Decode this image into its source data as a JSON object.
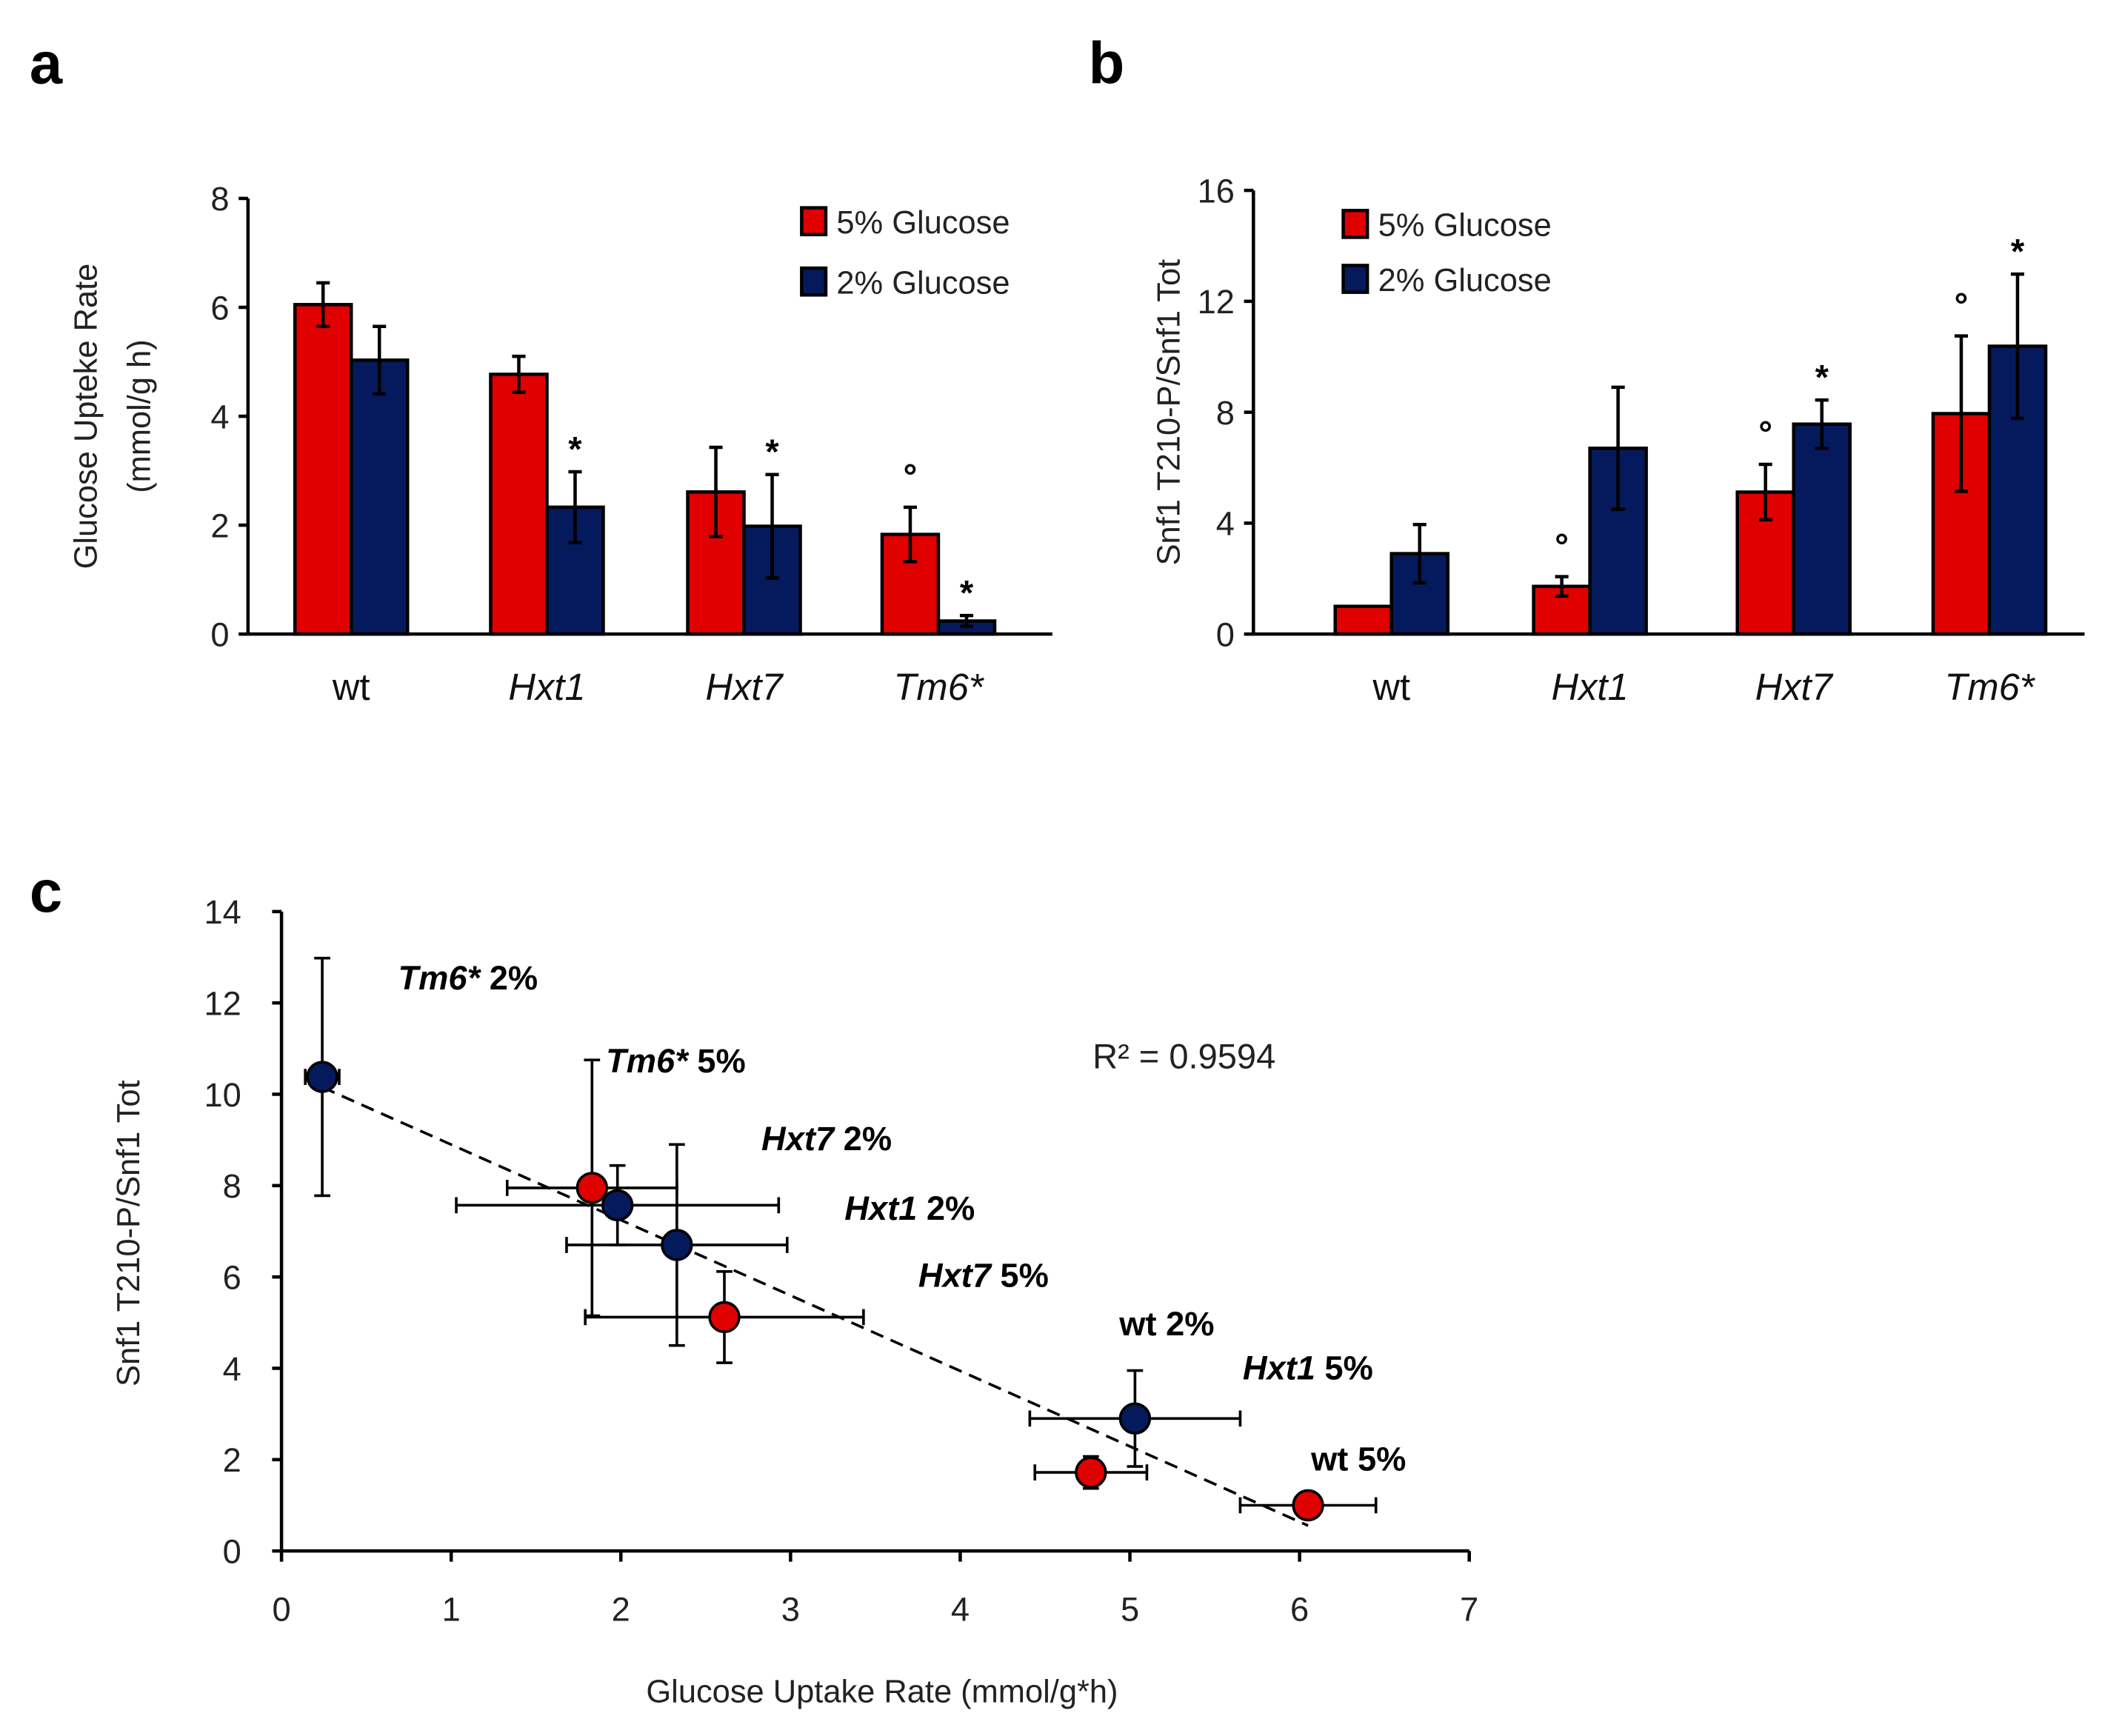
{
  "colors": {
    "red": "#e00000",
    "blue": "#041a5c",
    "axis": "#000000"
  },
  "chart_data": [
    {
      "id": "a",
      "panel_label": "a",
      "type": "bar",
      "ylabel_line1": "Glucose Upteke Rate",
      "ylabel_line2": "(mmol/g h)",
      "ylim": [
        0,
        8
      ],
      "yticks": [
        "0",
        "2",
        "4",
        "6",
        "8"
      ],
      "categories": [
        "wt",
        "Hxt1",
        "Hxt7",
        "Tm6*"
      ],
      "categories_italic": [
        false,
        true,
        true,
        true
      ],
      "legend": [
        "5% Glucose",
        "2% Glucose"
      ],
      "legend_position": "top-right",
      "series": [
        {
          "name": "5% Glucose",
          "values": [
            6.05,
            4.77,
            2.61,
            1.83
          ],
          "errors": [
            0.4,
            0.33,
            0.82,
            0.5
          ],
          "markers": [
            "",
            "",
            "",
            "°"
          ]
        },
        {
          "name": "2% Glucose",
          "values": [
            5.03,
            2.33,
            1.98,
            0.24
          ],
          "errors": [
            0.62,
            0.65,
            0.95,
            0.1
          ],
          "markers": [
            "",
            "*",
            "*",
            "*"
          ]
        }
      ]
    },
    {
      "id": "b",
      "panel_label": "b",
      "type": "bar",
      "ylabel_line1": "Snf1 T210-P/Snf1 Tot",
      "ylabel_line2": "",
      "ylim": [
        0,
        16
      ],
      "yticks": [
        "0",
        "4",
        "8",
        "12",
        "16"
      ],
      "categories": [
        "wt",
        "Hxt1",
        "Hxt7",
        "Tm6*"
      ],
      "categories_italic": [
        false,
        true,
        true,
        true
      ],
      "legend": [
        "5% Glucose",
        "2% Glucose"
      ],
      "legend_position": "top-left",
      "series": [
        {
          "name": "5% Glucose",
          "values": [
            1.0,
            1.72,
            5.12,
            7.95
          ],
          "errors": [
            0,
            0.35,
            1.0,
            2.8
          ],
          "markers": [
            "",
            "°",
            "°",
            "°"
          ]
        },
        {
          "name": "2% Glucose",
          "values": [
            2.9,
            6.7,
            7.57,
            10.38
          ],
          "errors": [
            1.05,
            2.2,
            0.87,
            2.6
          ],
          "markers": [
            "",
            "",
            "*",
            "*"
          ]
        }
      ]
    },
    {
      "id": "c",
      "panel_label": "c",
      "type": "scatter",
      "xlabel": "Glucose Uptake Rate (mmol/g*h)",
      "ylabel": "Snf1 T210-P/Snf1 Tot",
      "xlim": [
        0,
        7
      ],
      "ylim": [
        0,
        14
      ],
      "xticks": [
        "0",
        "1",
        "2",
        "3",
        "4",
        "5",
        "6",
        "7"
      ],
      "yticks": [
        "0",
        "2",
        "4",
        "6",
        "8",
        "10",
        "12",
        "14"
      ],
      "r2_label": "R² = 0.9594",
      "trendline": {
        "slope": -1.652,
        "intercept": 10.55,
        "x_range": [
          0.24,
          6.05
        ]
      },
      "points": [
        {
          "gene": "wt",
          "pct": " 5%",
          "italic": false,
          "series": "5%",
          "x": 6.05,
          "y": 1.0,
          "xerr": 0.4,
          "yerr": 0
        },
        {
          "gene": "Hxt1",
          "pct": " 5%",
          "italic": true,
          "series": "5%",
          "x": 4.77,
          "y": 1.72,
          "xerr": 0.33,
          "yerr": 0.35
        },
        {
          "gene": "Hxt7",
          "pct": " 5%",
          "italic": true,
          "series": "5%",
          "x": 2.61,
          "y": 5.12,
          "xerr": 0.82,
          "yerr": 1.0
        },
        {
          "gene": "Tm6*",
          "pct": " 5%",
          "italic": true,
          "series": "5%",
          "x": 1.83,
          "y": 7.95,
          "xerr": 0.5,
          "yerr": 2.8
        },
        {
          "gene": "wt",
          "pct": " 2%",
          "italic": false,
          "series": "2%",
          "x": 5.03,
          "y": 2.9,
          "xerr": 0.62,
          "yerr": 1.05
        },
        {
          "gene": "Hxt1",
          "pct": " 2%",
          "italic": true,
          "series": "2%",
          "x": 2.33,
          "y": 6.7,
          "xerr": 0.65,
          "yerr": 2.2
        },
        {
          "gene": "Hxt7",
          "pct": " 2%",
          "italic": true,
          "series": "2%",
          "x": 1.98,
          "y": 7.57,
          "xerr": 0.95,
          "yerr": 0.87
        },
        {
          "gene": "Tm6*",
          "pct": " 2%",
          "italic": true,
          "series": "2%",
          "x": 0.24,
          "y": 10.38,
          "xerr": 0.1,
          "yerr": 2.6
        }
      ]
    }
  ]
}
